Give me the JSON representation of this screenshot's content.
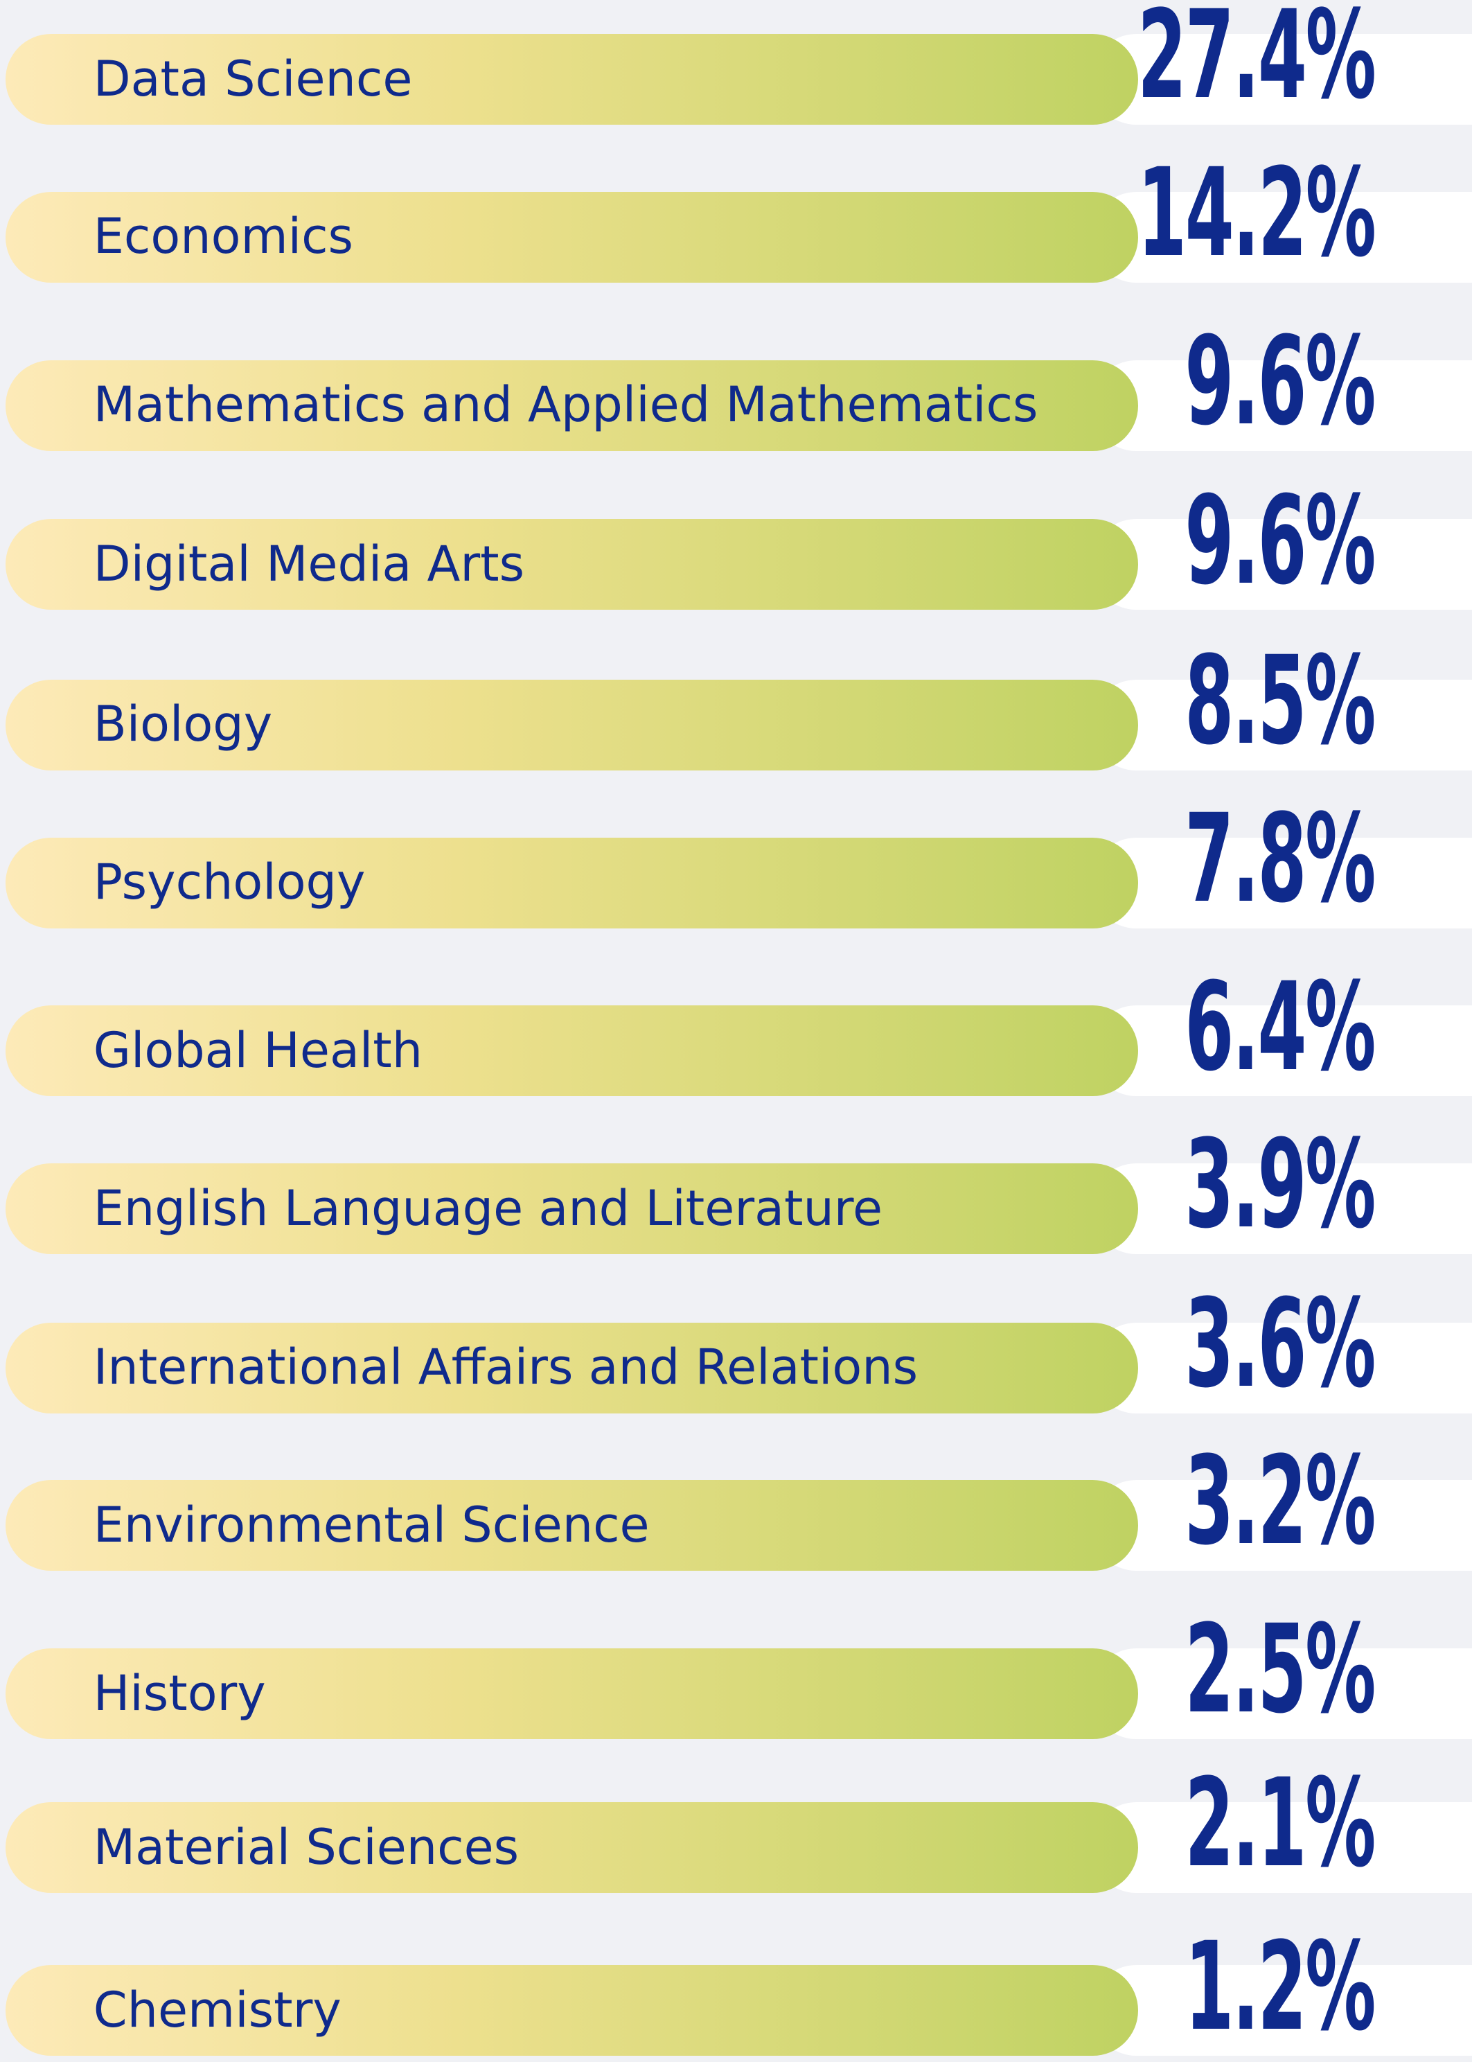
{
  "items": [
    {
      "label": "Data Science",
      "value": "27.4%"
    },
    {
      "label": "Economics",
      "value": "14.2%"
    },
    {
      "label": "Mathematics and Applied Mathematics",
      "value": "9.6%"
    },
    {
      "label": "Digital Media Arts",
      "value": "9.6%"
    },
    {
      "label": "Biology",
      "value": "8.5%"
    },
    {
      "label": "Psychology",
      "value": "7.8%"
    },
    {
      "label": "Global Health",
      "value": "6.4%"
    },
    {
      "label": "English Language and Literature",
      "value": "3.9%"
    },
    {
      "label": "International Affairs and Relations",
      "value": "3.6%"
    },
    {
      "label": "Environmental Science",
      "value": "3.2%"
    },
    {
      "label": "History",
      "value": "2.5%"
    },
    {
      "label": "Material Sciences",
      "value": "2.1%"
    },
    {
      "label": "Chemistry",
      "value": "1.2%"
    }
  ]
}
